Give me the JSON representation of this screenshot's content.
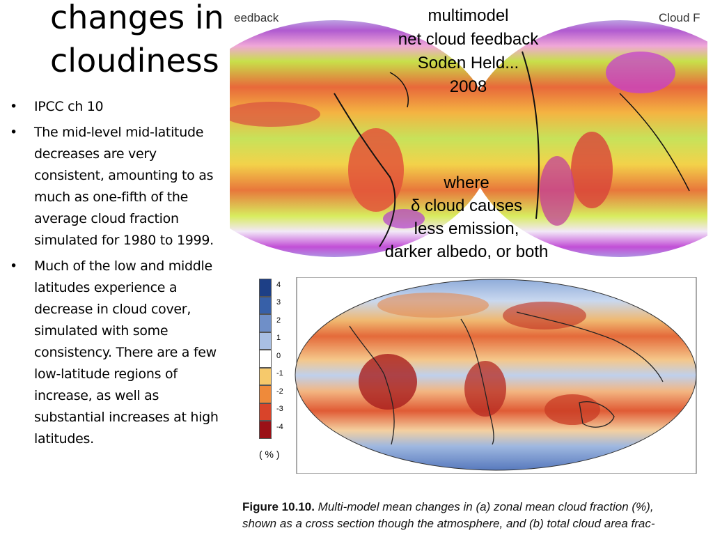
{
  "slide": {
    "title_line1": "changes in",
    "title_line2": "cloudiness"
  },
  "bullets": [
    {
      "text": "IPCC ch 10"
    },
    {
      "text": "The mid-level mid-latitude decreases are very consistent, amounting to as much as one-fifth of the average cloud fraction simulated for 1980 to 1999."
    },
    {
      "text": "Much of the low and middle latitudes experience a decrease in cloud cover, simulated with some consistency. There are a few low-latitude regions of increase, as well as substantial increases at high latitudes."
    }
  ],
  "bullet_glyph": "•",
  "top_figure": {
    "corner_left": "eedback",
    "corner_right": "Cloud F",
    "overlay_title": [
      "multimodel",
      "net cloud feedback",
      "Soden Held...",
      "2008"
    ],
    "overlay_where": [
      "where",
      "δ cloud causes",
      "less emission,",
      "darker albedo, or both"
    ]
  },
  "colorbar": {
    "ticks": [
      "4",
      "3",
      "2",
      "1",
      "0",
      "-1",
      "-2",
      "-3",
      "-4"
    ],
    "unit": "( % )",
    "colors": [
      "#1d3f86",
      "#3760a8",
      "#6f8fc8",
      "#a9bfe3",
      "#ffffff",
      "#f6c96b",
      "#ef8a3a",
      "#d9442a",
      "#9b1117"
    ]
  },
  "caption": {
    "figure_label": "Figure 10.10.",
    "line1_rest": "Multi-model mean changes in (a) zonal mean cloud fraction (%),",
    "line2": "shown as a cross section though the atmosphere, and (b) total cloud area frac-"
  }
}
